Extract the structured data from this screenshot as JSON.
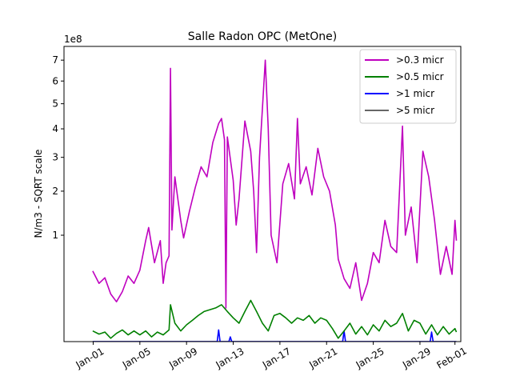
{
  "chart_data": {
    "type": "line",
    "title": "Salle Radon OPC (MetOne)",
    "ylabel": "N/m3 - SQRT scale",
    "xlabel": "",
    "y_scale": "sqrt",
    "y_offset_label": "1e8",
    "y_unit_multiplier": 100000000,
    "ylim": [
      0,
      7.7
    ],
    "yticks": [
      1,
      2,
      3,
      4,
      5,
      6,
      7
    ],
    "yticks_labels": [
      "1",
      "2",
      "3",
      "4",
      "5",
      "6",
      "7"
    ],
    "xlim": [
      "2019-12-29T12:00",
      "2020-02-01T12:00"
    ],
    "xticks": [
      "2020-01-01",
      "2020-01-05",
      "2020-01-09",
      "2020-01-13",
      "2020-01-17",
      "2020-01-21",
      "2020-01-25",
      "2020-01-29",
      "2020-02-01"
    ],
    "xticks_labels": [
      "Jan-01",
      "Jan-05",
      "Jan-09",
      "Jan-13",
      "Jan-17",
      "Jan-21",
      "Jan-25",
      "Jan-29",
      "Feb-01"
    ],
    "grid": false,
    "legend_position": "top-right",
    "series": [
      {
        "name": ">0.3 micr",
        "color": "#bf00bf",
        "points": [
          [
            "2019-12-31T23:00",
            0.44
          ],
          [
            "2020-01-01T12:00",
            0.3
          ],
          [
            "2020-01-02T00:00",
            0.36
          ],
          [
            "2020-01-02T12:00",
            0.2
          ],
          [
            "2020-01-03T00:00",
            0.14
          ],
          [
            "2020-01-03T12:00",
            0.22
          ],
          [
            "2020-01-04T00:00",
            0.38
          ],
          [
            "2020-01-04T12:00",
            0.3
          ],
          [
            "2020-01-05T00:00",
            0.45
          ],
          [
            "2020-01-05T12:00",
            0.9
          ],
          [
            "2020-01-05T18:00",
            1.15
          ],
          [
            "2020-01-06T06:00",
            0.55
          ],
          [
            "2020-01-06T18:00",
            0.9
          ],
          [
            "2020-01-07T00:00",
            0.3
          ],
          [
            "2020-01-07T06:00",
            0.55
          ],
          [
            "2020-01-07T12:00",
            0.65
          ],
          [
            "2020-01-07T15:00",
            6.6
          ],
          [
            "2020-01-07T18:00",
            1.1
          ],
          [
            "2020-01-08T00:00",
            2.4
          ],
          [
            "2020-01-08T12:00",
            1.3
          ],
          [
            "2020-01-08T18:00",
            0.95
          ],
          [
            "2020-01-09T06:00",
            1.5
          ],
          [
            "2020-01-09T18:00",
            2.1
          ],
          [
            "2020-01-10T06:00",
            2.7
          ],
          [
            "2020-01-10T18:00",
            2.4
          ],
          [
            "2020-01-11T06:00",
            3.5
          ],
          [
            "2020-01-11T18:00",
            4.2
          ],
          [
            "2020-01-12T00:00",
            4.4
          ],
          [
            "2020-01-12T06:00",
            3.6
          ],
          [
            "2020-01-12T09:00",
            0.1
          ],
          [
            "2020-01-12T12:00",
            3.7
          ],
          [
            "2020-01-13T00:00",
            2.3
          ],
          [
            "2020-01-13T06:00",
            1.2
          ],
          [
            "2020-01-13T12:00",
            1.8
          ],
          [
            "2020-01-14T00:00",
            4.3
          ],
          [
            "2020-01-14T12:00",
            3.2
          ],
          [
            "2020-01-14T18:00",
            2.0
          ],
          [
            "2020-01-15T00:00",
            0.7
          ],
          [
            "2020-01-15T06:00",
            3.0
          ],
          [
            "2020-01-15T18:00",
            7.0
          ],
          [
            "2020-01-16T00:00",
            4.0
          ],
          [
            "2020-01-16T06:00",
            1.0
          ],
          [
            "2020-01-16T18:00",
            0.55
          ],
          [
            "2020-01-17T06:00",
            2.2
          ],
          [
            "2020-01-17T18:00",
            2.8
          ],
          [
            "2020-01-18T06:00",
            1.8
          ],
          [
            "2020-01-18T12:00",
            4.4
          ],
          [
            "2020-01-18T18:00",
            2.2
          ],
          [
            "2020-01-19T06:00",
            2.7
          ],
          [
            "2020-01-19T18:00",
            1.9
          ],
          [
            "2020-01-20T06:00",
            3.3
          ],
          [
            "2020-01-20T18:00",
            2.4
          ],
          [
            "2020-01-21T06:00",
            2.0
          ],
          [
            "2020-01-21T18:00",
            1.2
          ],
          [
            "2020-01-22T00:00",
            0.6
          ],
          [
            "2020-01-22T12:00",
            0.35
          ],
          [
            "2020-01-23T00:00",
            0.25
          ],
          [
            "2020-01-23T12:00",
            0.55
          ],
          [
            "2020-01-24T00:00",
            0.15
          ],
          [
            "2020-01-24T12:00",
            0.3
          ],
          [
            "2020-01-25T00:00",
            0.7
          ],
          [
            "2020-01-25T12:00",
            0.55
          ],
          [
            "2020-01-26T00:00",
            1.3
          ],
          [
            "2020-01-26T12:00",
            0.8
          ],
          [
            "2020-01-27T00:00",
            0.7
          ],
          [
            "2020-01-27T12:00",
            4.1
          ],
          [
            "2020-01-27T18:00",
            1.0
          ],
          [
            "2020-01-28T06:00",
            1.6
          ],
          [
            "2020-01-28T18:00",
            0.55
          ],
          [
            "2020-01-29T06:00",
            3.2
          ],
          [
            "2020-01-29T18:00",
            2.4
          ],
          [
            "2020-01-30T06:00",
            1.3
          ],
          [
            "2020-01-30T18:00",
            0.4
          ],
          [
            "2020-01-31T06:00",
            0.8
          ],
          [
            "2020-01-31T18:00",
            0.4
          ],
          [
            "2020-02-01T00:00",
            1.3
          ],
          [
            "2020-02-01T03:00",
            0.9
          ]
        ]
      },
      {
        "name": ">0.5 micr",
        "color": "#008000",
        "points": [
          [
            "2019-12-31T23:00",
            0.01
          ],
          [
            "2020-01-01T12:00",
            0.005
          ],
          [
            "2020-01-02T00:00",
            0.008
          ],
          [
            "2020-01-02T12:00",
            0.001
          ],
          [
            "2020-01-03T00:00",
            0.006
          ],
          [
            "2020-01-03T12:00",
            0.012
          ],
          [
            "2020-01-04T00:00",
            0.004
          ],
          [
            "2020-01-04T12:00",
            0.01
          ],
          [
            "2020-01-05T00:00",
            0.004
          ],
          [
            "2020-01-05T12:00",
            0.01
          ],
          [
            "2020-01-06T00:00",
            0.002
          ],
          [
            "2020-01-06T12:00",
            0.008
          ],
          [
            "2020-01-07T00:00",
            0.004
          ],
          [
            "2020-01-07T12:00",
            0.012
          ],
          [
            "2020-01-07T15:00",
            0.12
          ],
          [
            "2020-01-08T00:00",
            0.03
          ],
          [
            "2020-01-08T12:00",
            0.01
          ],
          [
            "2020-01-09T00:00",
            0.025
          ],
          [
            "2020-01-09T12:00",
            0.04
          ],
          [
            "2020-01-10T00:00",
            0.06
          ],
          [
            "2020-01-10T12:00",
            0.08
          ],
          [
            "2020-01-11T00:00",
            0.09
          ],
          [
            "2020-01-11T12:00",
            0.1
          ],
          [
            "2020-01-12T00:00",
            0.12
          ],
          [
            "2020-01-12T12:00",
            0.08
          ],
          [
            "2020-01-13T00:00",
            0.05
          ],
          [
            "2020-01-13T12:00",
            0.03
          ],
          [
            "2020-01-14T00:00",
            0.08
          ],
          [
            "2020-01-14T12:00",
            0.15
          ],
          [
            "2020-01-15T00:00",
            0.08
          ],
          [
            "2020-01-15T12:00",
            0.03
          ],
          [
            "2020-01-16T00:00",
            0.01
          ],
          [
            "2020-01-16T12:00",
            0.06
          ],
          [
            "2020-01-17T00:00",
            0.07
          ],
          [
            "2020-01-17T12:00",
            0.05
          ],
          [
            "2020-01-18T00:00",
            0.03
          ],
          [
            "2020-01-18T12:00",
            0.05
          ],
          [
            "2020-01-19T00:00",
            0.04
          ],
          [
            "2020-01-19T12:00",
            0.06
          ],
          [
            "2020-01-20T00:00",
            0.03
          ],
          [
            "2020-01-20T12:00",
            0.05
          ],
          [
            "2020-01-21T00:00",
            0.04
          ],
          [
            "2020-01-21T12:00",
            0.015
          ],
          [
            "2020-01-22T00:00",
            0.001
          ],
          [
            "2020-01-22T12:00",
            0.01
          ],
          [
            "2020-01-23T00:00",
            0.03
          ],
          [
            "2020-01-23T12:00",
            0.005
          ],
          [
            "2020-01-24T00:00",
            0.02
          ],
          [
            "2020-01-24T12:00",
            0.004
          ],
          [
            "2020-01-25T00:00",
            0.025
          ],
          [
            "2020-01-25T12:00",
            0.01
          ],
          [
            "2020-01-26T00:00",
            0.04
          ],
          [
            "2020-01-26T12:00",
            0.02
          ],
          [
            "2020-01-27T00:00",
            0.03
          ],
          [
            "2020-01-27T12:00",
            0.07
          ],
          [
            "2020-01-28T00:00",
            0.01
          ],
          [
            "2020-01-28T12:00",
            0.04
          ],
          [
            "2020-01-29T00:00",
            0.03
          ],
          [
            "2020-01-29T12:00",
            0.005
          ],
          [
            "2020-01-30T00:00",
            0.025
          ],
          [
            "2020-01-30T12:00",
            0.004
          ],
          [
            "2020-01-31T00:00",
            0.02
          ],
          [
            "2020-01-31T12:00",
            0.005
          ],
          [
            "2020-02-01T00:00",
            0.015
          ],
          [
            "2020-02-01T03:00",
            0.008
          ]
        ]
      },
      {
        "name": ">1 micr",
        "color": "#0000ff",
        "points": [
          [
            "2019-12-31T23:00",
            0.0
          ],
          [
            "2020-01-11T15:00",
            0.0
          ],
          [
            "2020-01-11T18:00",
            0.012
          ],
          [
            "2020-01-11T21:00",
            0.0
          ],
          [
            "2020-01-12T15:00",
            0.0
          ],
          [
            "2020-01-12T18:00",
            0.002
          ],
          [
            "2020-01-12T21:00",
            0.0
          ],
          [
            "2020-01-22T09:00",
            0.0
          ],
          [
            "2020-01-22T12:00",
            0.01
          ],
          [
            "2020-01-22T15:00",
            0.0
          ],
          [
            "2020-01-29T21:00",
            0.0
          ],
          [
            "2020-01-30T00:00",
            0.008
          ],
          [
            "2020-01-30T03:00",
            0.0
          ],
          [
            "2020-02-01T03:00",
            0.0
          ]
        ]
      },
      {
        "name": ">5 micr",
        "color": "#666666",
        "points": [
          [
            "2019-12-31T23:00",
            0.0
          ],
          [
            "2020-02-01T03:00",
            0.0
          ]
        ]
      }
    ]
  }
}
